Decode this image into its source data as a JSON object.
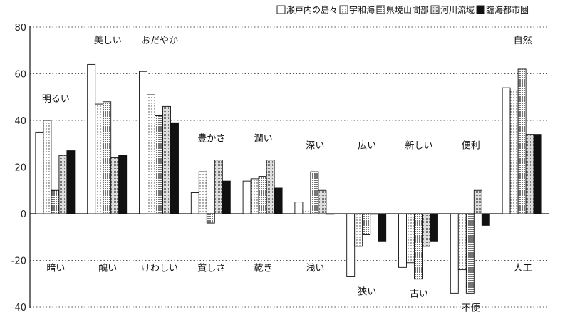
{
  "chart_data": {
    "type": "bar",
    "ylim": [
      -40,
      80
    ],
    "yticks": [
      80,
      60,
      40,
      20,
      0,
      -20,
      -40
    ],
    "grid": true,
    "legend_position": "top-right",
    "categories": [
      "明るい/暗い",
      "美しい/醜い",
      "おだやか/けわしい",
      "豊かさ/貧しさ",
      "潤い/乾き",
      "深い/浅い",
      "広い/狭い",
      "新しい/古い",
      "便利/不便",
      "自然/人工"
    ],
    "positive_labels": [
      "明るい",
      "美しい",
      "おだやか",
      "豊かさ",
      "潤い",
      "深い",
      "広い",
      "新しい",
      "便利",
      "自然"
    ],
    "negative_labels": [
      "暗い",
      "醜い",
      "けわしい",
      "貧しさ",
      "乾き",
      "浅い",
      "狭い",
      "古い",
      "不便",
      "人工"
    ],
    "series": [
      {
        "name": "瀬戸内の島々",
        "pattern": "white",
        "values": [
          35,
          64,
          61,
          9,
          14,
          5,
          -27,
          -23,
          -34,
          54
        ]
      },
      {
        "name": "宇和海",
        "pattern": "sparse-dots",
        "values": [
          40,
          47,
          51,
          18,
          15,
          2,
          -14,
          -21,
          -24,
          53
        ]
      },
      {
        "name": "県境山間部",
        "pattern": "dense-dots",
        "values": [
          10,
          48,
          42,
          -4,
          16,
          18,
          -9,
          -28,
          -34,
          62
        ]
      },
      {
        "name": "河川流域",
        "pattern": "fine-dots",
        "values": [
          25,
          24,
          46,
          23,
          23,
          10,
          0,
          -14,
          10,
          34
        ]
      },
      {
        "name": "臨海都市圏",
        "pattern": "black",
        "values": [
          27,
          25,
          39,
          14,
          11,
          0,
          -12,
          -12,
          -5,
          34
        ]
      }
    ]
  }
}
